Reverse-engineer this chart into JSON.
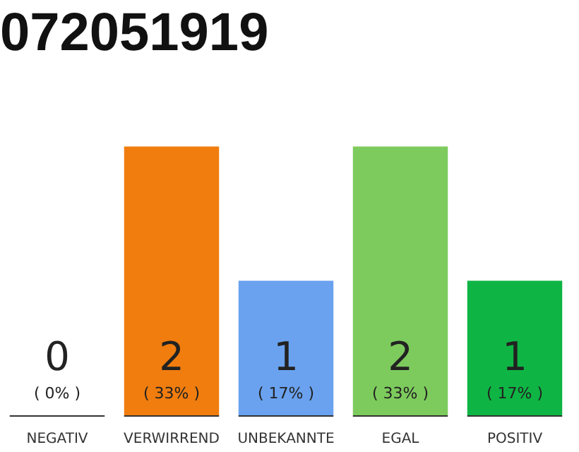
{
  "chart_data": {
    "type": "bar",
    "title": "072051919",
    "categories": [
      "NEGATIV",
      "VERWIRREND",
      "UNBEKANNTE",
      "EGAL",
      "POSITIV"
    ],
    "values": [
      0,
      2,
      1,
      2,
      1
    ],
    "colors": [
      "#cccccc",
      "#f07d0e",
      "#6aa2ef",
      "#7dcb5d",
      "#0fb544"
    ],
    "value_labels": [
      "0",
      "2",
      "1",
      "2",
      "1"
    ],
    "annotations": [
      "( 0% )",
      "( 33% )",
      "( 17% )",
      "( 33% )",
      "( 17% )"
    ],
    "tick_labels": "x",
    "grid": false,
    "legend": false
  }
}
